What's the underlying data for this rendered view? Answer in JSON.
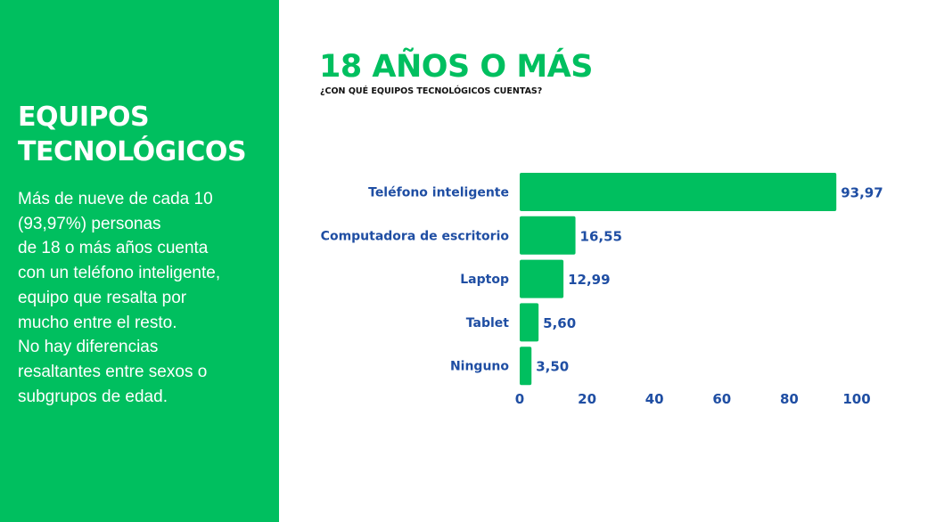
{
  "panel": {
    "title_lines": [
      "EQUIPOS",
      "TECNOLÓGICOS"
    ],
    "body_lines": [
      "Más de nueve de cada 10",
      "(93,97%) personas",
      "de 18 o más años cuenta",
      "con un teléfono inteligente,",
      "equipo que resalta por",
      "mucho entre el resto.",
      "No hay diferencias",
      "resaltantes entre sexos o",
      "subgrupos de edad."
    ]
  },
  "colors": {
    "accent": "#00bf5f",
    "text_blue": "#1f4ea3"
  },
  "chart_data": {
    "type": "bar",
    "orientation": "horizontal",
    "title": "18 AÑOS O MÁS",
    "subtitle": "¿CON QUÉ EQUIPOS TECNOLÓGICOS CUENTAS?",
    "categories": [
      "Teléfono inteligente",
      "Computadora de escritorio",
      "Laptop",
      "Tablet",
      "Ninguno"
    ],
    "values": [
      93.97,
      16.55,
      12.99,
      5.6,
      3.5
    ],
    "value_labels": [
      "93,97",
      "16,55",
      "12,99",
      "5,60",
      "3,50"
    ],
    "xlim": [
      0,
      100
    ],
    "xticks": [
      0,
      20,
      40,
      60,
      80,
      100
    ],
    "grid": false,
    "legend": "none"
  }
}
